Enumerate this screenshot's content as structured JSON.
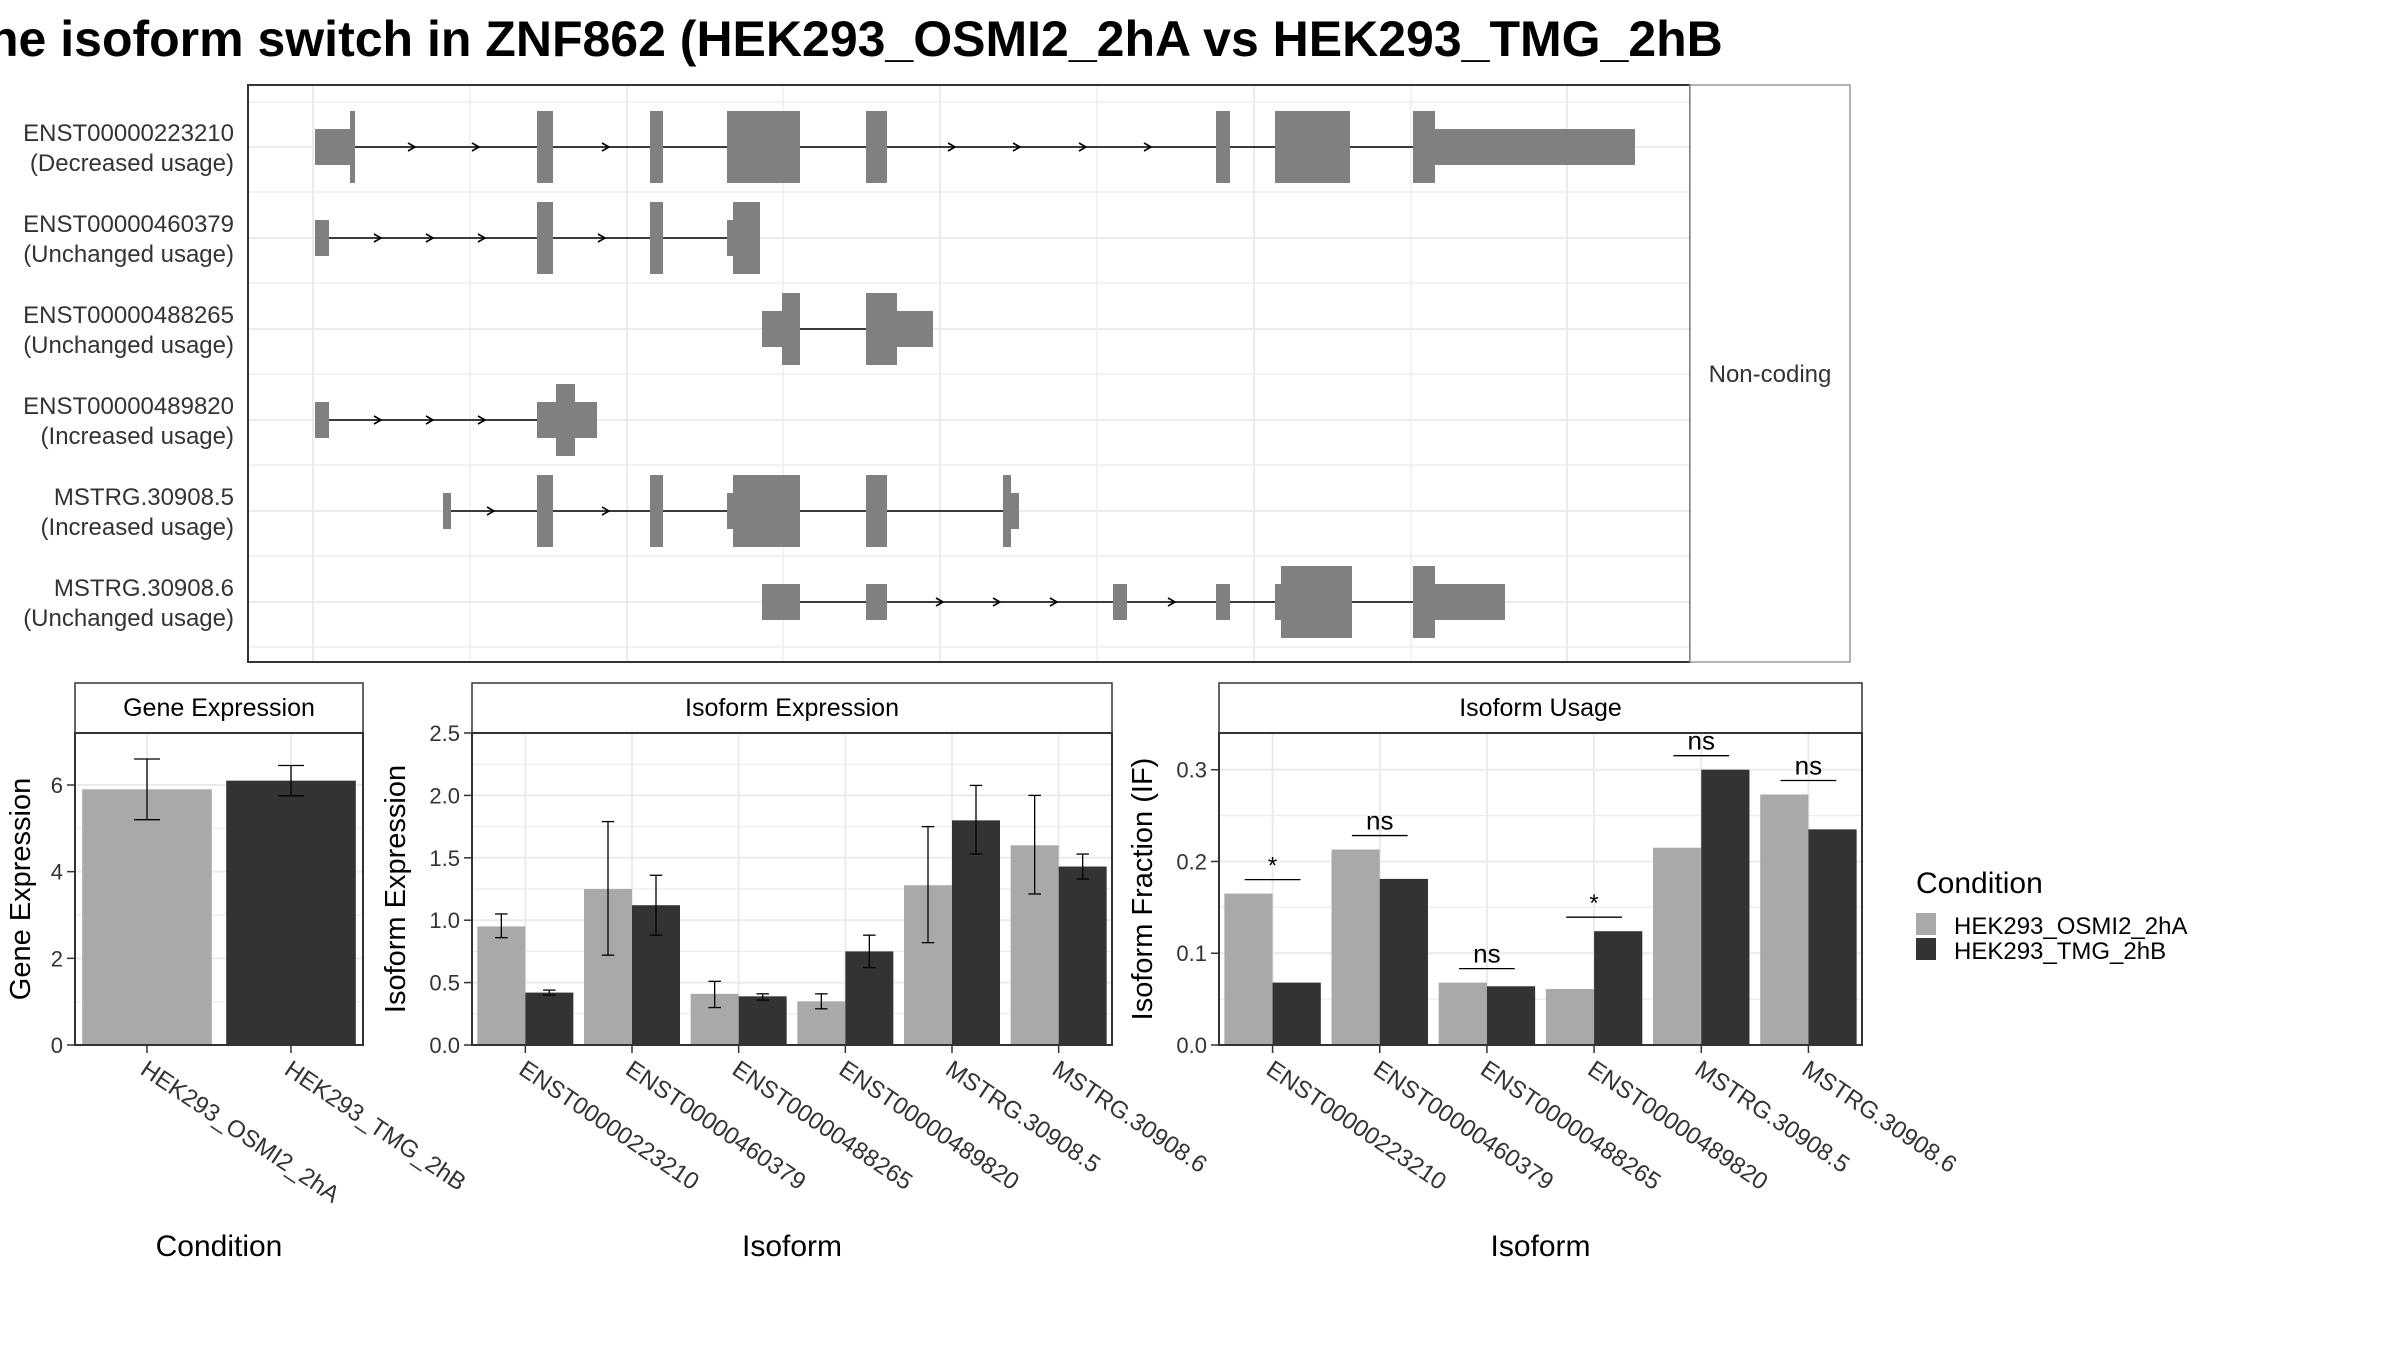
{
  "title": "he isoform switch in ZNF862 (HEK293_OSMI2_2hA vs HEK293_TMG_2hB",
  "colors": {
    "cond_a": "#a9a9a9",
    "cond_b": "#333333",
    "transcript": "#808080",
    "grid": "#ebebeb",
    "panel_border": "#333333",
    "strip_border": "#333333"
  },
  "chart_data": [
    {
      "type": "gene-structure",
      "strip_label": "Non-coding",
      "transcripts": [
        {
          "id": "ENST00000223210",
          "usage": "(Decreased usage)"
        },
        {
          "id": "ENST00000460379",
          "usage": "(Unchanged usage)"
        },
        {
          "id": "ENST00000488265",
          "usage": "(Unchanged usage)"
        },
        {
          "id": "ENST00000489820",
          "usage": "(Increased usage)"
        },
        {
          "id": "MSTRG.30908.5",
          "usage": "(Increased usage)"
        },
        {
          "id": "MSTRG.30908.6",
          "usage": "(Unchanged usage)"
        }
      ]
    },
    {
      "type": "bar",
      "strip_title": "Gene Expression",
      "ylabel": "Gene Expression",
      "xlabel": "Condition",
      "ylim": [
        0,
        7.2
      ],
      "yticks": [
        "0",
        "2",
        "4",
        "6"
      ],
      "categories": [
        "HEK293_OSMI2_2hA",
        "HEK293_TMG_2hB"
      ],
      "values": [
        5.9,
        6.1
      ],
      "errors": [
        [
          5.2,
          6.6
        ],
        [
          5.75,
          6.45
        ]
      ]
    },
    {
      "type": "bar",
      "strip_title": "Isoform Expression",
      "ylabel": "Isoform Expression",
      "xlabel": "Isoform",
      "ylim": [
        0,
        2.5
      ],
      "yticks": [
        "0.0",
        "0.5",
        "1.0",
        "1.5",
        "2.0",
        "2.5"
      ],
      "categories": [
        "ENST00000223210",
        "ENST00000460379",
        "ENST00000488265",
        "ENST00000489820",
        "MSTRG.30908.5",
        "MSTRG.30908.6"
      ],
      "series": [
        {
          "values": [
            0.95,
            1.25,
            0.41,
            0.35,
            1.28,
            1.6
          ],
          "errors": [
            [
              0.86,
              1.05
            ],
            [
              0.72,
              1.79
            ],
            [
              0.3,
              0.51
            ],
            [
              0.29,
              0.41
            ],
            [
              0.82,
              1.75
            ],
            [
              1.21,
              2.0
            ]
          ]
        },
        {
          "values": [
            0.42,
            1.12,
            0.39,
            0.75,
            1.8,
            1.43
          ],
          "errors": [
            [
              0.4,
              0.44
            ],
            [
              0.88,
              1.36
            ],
            [
              0.36,
              0.41
            ],
            [
              0.62,
              0.88
            ],
            [
              1.53,
              2.08
            ],
            [
              1.33,
              1.53
            ]
          ]
        }
      ]
    },
    {
      "type": "bar",
      "strip_title": "Isoform Usage",
      "ylabel": "Isoform Fraction (IF)",
      "xlabel": "Isoform",
      "ylim": [
        0,
        0.34
      ],
      "yticks": [
        "0.0",
        "0.1",
        "0.2",
        "0.3"
      ],
      "categories": [
        "ENST00000223210",
        "ENST00000460379",
        "ENST00000488265",
        "ENST00000489820",
        "MSTRG.30908.5",
        "MSTRG.30908.6"
      ],
      "series": [
        {
          "values": [
            0.165,
            0.213,
            0.068,
            0.061,
            0.215,
            0.273
          ]
        },
        {
          "values": [
            0.068,
            0.181,
            0.064,
            0.124,
            0.3,
            0.235
          ]
        }
      ],
      "significance": [
        "*",
        "ns",
        "ns",
        "*",
        "ns",
        "ns"
      ]
    }
  ],
  "legend": {
    "title": "Condition",
    "items": [
      "HEK293_OSMI2_2hA",
      "HEK293_TMG_2hB"
    ]
  }
}
